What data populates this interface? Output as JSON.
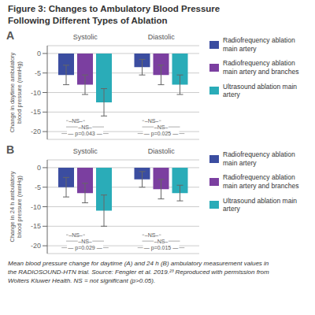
{
  "chart_data": [
    {
      "type": "bar",
      "title": "Figure 3: Changes to Ambulatory Blood Pressure\nFollowing Different Types of Ablation",
      "label": "A",
      "y_label": "Change in daytime ambulatory\nblood pressure (mmHg)",
      "categories": [
        "Systolic",
        "Diastolic"
      ],
      "series": [
        {
          "name": "Radiofrequency ablation\nmain artery",
          "color": "#3B4DA0",
          "values": [
            -5.5,
            -3.5
          ],
          "errors": [
            2.5,
            2.0
          ]
        },
        {
          "name": "Radiofrequency ablation\nmain artery and branches",
          "color": "#7B3FA0",
          "values": [
            -8.0,
            -5.5
          ],
          "errors": [
            2.5,
            2.5
          ]
        },
        {
          "name": "Ultrasound ablation main artery",
          "color": "#2AACB8",
          "values": [
            -12.5,
            -8.0
          ],
          "errors": [
            3.5,
            2.5
          ]
        }
      ],
      "ylim": [
        -22,
        2
      ],
      "yticks": [
        0,
        -5,
        -10,
        -15,
        -20
      ],
      "grid": true,
      "legend": "right",
      "annotations": [
        {
          "category": "Systolic",
          "text": "–NS–"
        },
        {
          "category": "Systolic",
          "text": "–NS–"
        },
        {
          "category": "Systolic",
          "text": "— p=0.043 —"
        },
        {
          "category": "Diastolic",
          "text": "–NS–"
        },
        {
          "category": "Diastolic",
          "text": "–NS–"
        },
        {
          "category": "Diastolic",
          "text": "— p=0.025 —"
        }
      ]
    },
    {
      "type": "bar",
      "label": "B",
      "y_label": "Change in 24 h ambulatory\nblood pressure (mmHg)",
      "categories": [
        "Systolic",
        "Diastolic"
      ],
      "series": [
        {
          "name": "Radiofrequency ablation\nmain artery",
          "color": "#3B4DA0",
          "values": [
            -5.0,
            -3.0
          ],
          "errors": [
            2.5,
            2.0
          ]
        },
        {
          "name": "Radiofrequency ablation\nmain artery and branches",
          "color": "#7B3FA0",
          "values": [
            -6.5,
            -5.5
          ],
          "errors": [
            2.5,
            2.5
          ]
        },
        {
          "name": "Ultrasound ablation main artery",
          "color": "#2AACB8",
          "values": [
            -11.0,
            -6.5
          ],
          "errors": [
            4.0,
            2.0
          ]
        }
      ],
      "ylim": [
        -22,
        2
      ],
      "yticks": [
        0,
        -5,
        -10,
        -15,
        -20
      ],
      "grid": true,
      "legend": "right",
      "annotations": [
        {
          "category": "Systolic",
          "text": "–NS–"
        },
        {
          "category": "Systolic",
          "text": "–NS–"
        },
        {
          "category": "Systolic",
          "text": "— p=0.029 —"
        },
        {
          "category": "Diastolic",
          "text": "–NS–"
        },
        {
          "category": "Diastolic",
          "text": "–NS–"
        },
        {
          "category": "Diastolic",
          "text": "— p=0.015 —"
        }
      ],
      "caption": "Mean blood pressure change for daytime (A) and 24 h (B) ambulatory measurement values in\nthe RADIOSOUND-HTN trial. Source: Fengler et al. 2019.²³ Reproduced with permission from\nWolters Kluwer Health. NS = not significant (p>0.05)."
    }
  ]
}
